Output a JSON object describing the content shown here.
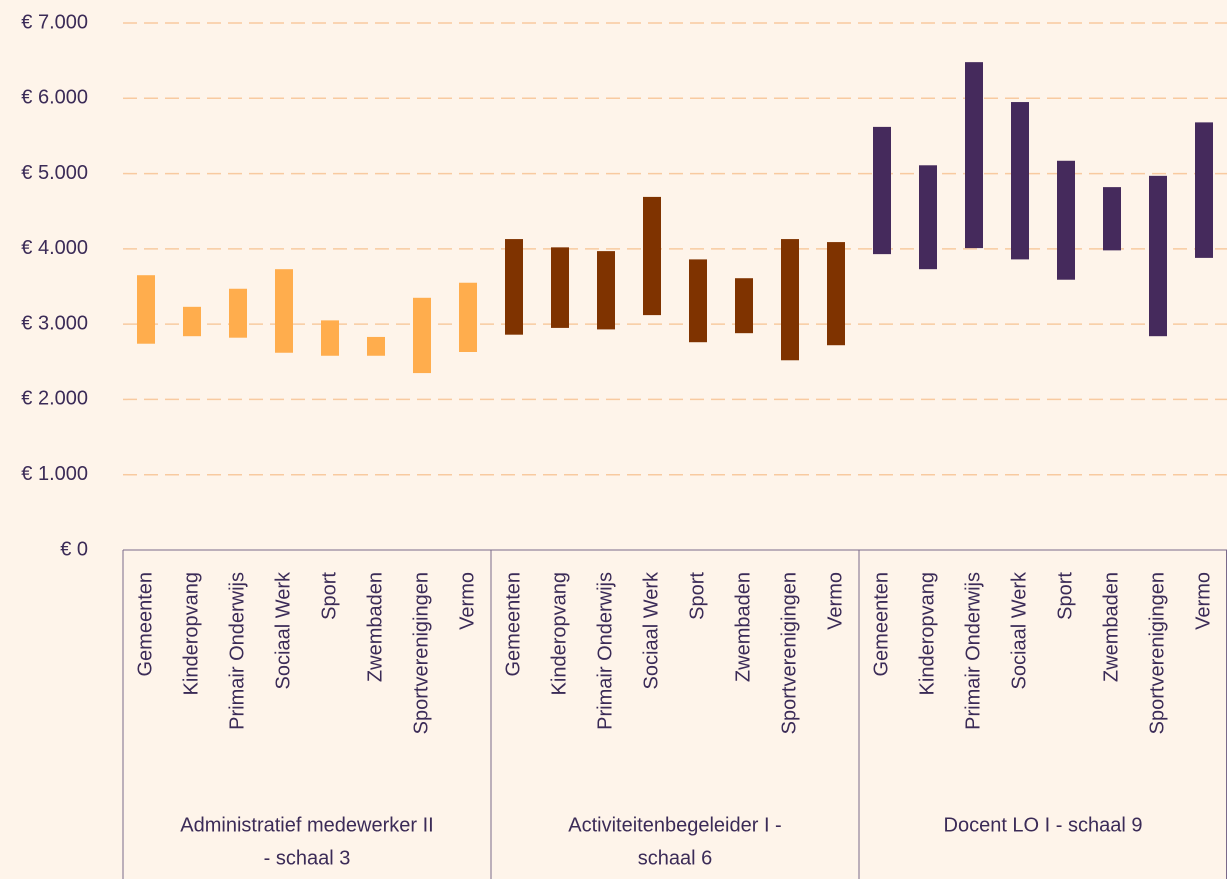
{
  "chart_data": {
    "type": "range_bar",
    "ylim": [
      0,
      7000
    ],
    "yticks": [
      {
        "value": 0,
        "label": "€ 0"
      },
      {
        "value": 1000,
        "label": "€ 1.000"
      },
      {
        "value": 2000,
        "label": "€ 2.000"
      },
      {
        "value": 3000,
        "label": "€ 3.000"
      },
      {
        "value": 4000,
        "label": "€ 4.000"
      },
      {
        "value": 5000,
        "label": "€ 5.000"
      },
      {
        "value": 6000,
        "label": "€ 6.000"
      },
      {
        "value": 7000,
        "label": "€ 7.000"
      }
    ],
    "grid": true,
    "groups": [
      {
        "label": [
          "Administratief medewerker II",
          "- schaal 3"
        ],
        "color": "#ffad4d",
        "categories": [
          "Gemeenten",
          "Kinderopvang",
          "Primair Onderwijs",
          "Sociaal Werk",
          "Sport",
          "Zwembaden",
          "Sportverenigingen",
          "Vermo"
        ],
        "low": [
          2740,
          2840,
          2820,
          2620,
          2580,
          2580,
          2350,
          2630
        ],
        "high": [
          3650,
          3230,
          3470,
          3730,
          3050,
          2830,
          3350,
          3550
        ]
      },
      {
        "label": [
          "Activiteitenbegeleider I -",
          "schaal 6"
        ],
        "color": "#7f3300",
        "categories": [
          "Gemeenten",
          "Kinderopvang",
          "Primair Onderwijs",
          "Sociaal Werk",
          "Sport",
          "Zwembaden",
          "Sportverenigingen",
          "Vermo"
        ],
        "low": [
          2860,
          2950,
          2930,
          3120,
          2760,
          2880,
          2520,
          2720
        ],
        "high": [
          4130,
          4020,
          3970,
          4690,
          3860,
          3610,
          4130,
          4090
        ]
      },
      {
        "label": [
          "Docent LO I - schaal 9"
        ],
        "color": "#452a5c",
        "categories": [
          "Gemeenten",
          "Kinderopvang",
          "Primair Onderwijs",
          "Sociaal Werk",
          "Sport",
          "Zwembaden",
          "Sportverenigingen",
          "Vermo"
        ],
        "low": [
          3930,
          3730,
          4010,
          3860,
          3590,
          3980,
          2840,
          3880
        ],
        "high": [
          5620,
          5110,
          6480,
          5950,
          5170,
          4820,
          4970,
          5680
        ]
      }
    ]
  }
}
